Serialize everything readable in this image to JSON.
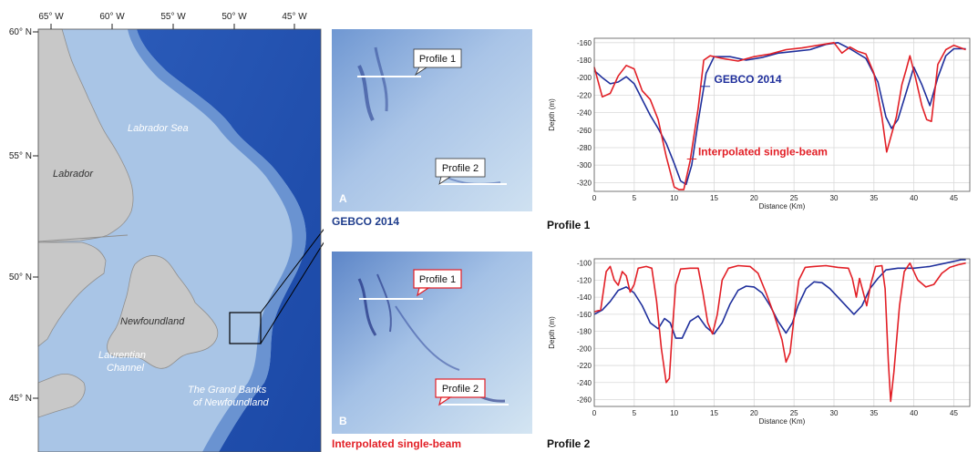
{
  "colors": {
    "gebco": "#1f2f9c",
    "single_beam": "#e21f26",
    "land": "#c8c8c8",
    "ocean_deep": "#1d4fb0",
    "ocean_shallow": "#bcd3ea"
  },
  "map": {
    "lon_ticks": [
      "65° W",
      "60° W",
      "55° W",
      "50° W",
      "45° W"
    ],
    "lat_ticks": [
      "60° N",
      "55° N",
      "50° N",
      "45° N"
    ],
    "labels": {
      "labrador_sea": "Labrador Sea",
      "labrador": "Labrador",
      "newfoundland": "Newfoundland",
      "laurentian_1": "Laurentian",
      "laurentian_2": "Channel",
      "grand_banks_1": "The Grand Banks",
      "grand_banks_2": "of Newfoundland"
    }
  },
  "panels": {
    "a": {
      "letter": "A",
      "caption": "GEBCO 2014",
      "profile1": "Profile 1",
      "profile2": "Profile 2"
    },
    "b": {
      "letter": "B",
      "caption": "Interpolated single-beam",
      "profile1": "Profile 1",
      "profile2": "Profile 2"
    }
  },
  "chart_data": [
    {
      "type": "line",
      "title": "Profile 1",
      "xlabel": "Distance (Km)",
      "ylabel": "Depth (m)",
      "xlim": [
        0,
        47
      ],
      "ylim": [
        -330,
        -155
      ],
      "xticks": [
        0,
        5,
        10,
        15,
        20,
        25,
        30,
        35,
        40,
        45
      ],
      "yticks": [
        -160,
        -180,
        -200,
        -220,
        -240,
        -260,
        -280,
        -300,
        -320
      ],
      "grid": true,
      "annotations": [
        "GEBCO 2014",
        "Interpolated single-beam"
      ],
      "series": [
        {
          "name": "GEBCO 2014",
          "color": "#1f2f9c",
          "points": [
            [
              0,
              -192
            ],
            [
              1,
              -200
            ],
            [
              2,
              -207
            ],
            [
              3,
              -205
            ],
            [
              4,
              -199
            ],
            [
              5,
              -207
            ],
            [
              6,
              -225
            ],
            [
              7,
              -243
            ],
            [
              8,
              -258
            ],
            [
              9,
              -275
            ],
            [
              10,
              -298
            ],
            [
              10.8,
              -318
            ],
            [
              11.5,
              -322
            ],
            [
              12.2,
              -300
            ],
            [
              13,
              -250
            ],
            [
              14,
              -195
            ],
            [
              15,
              -176
            ],
            [
              17,
              -176
            ],
            [
              19,
              -180
            ],
            [
              21,
              -177
            ],
            [
              23,
              -172
            ],
            [
              25,
              -170
            ],
            [
              27,
              -168
            ],
            [
              29,
              -162
            ],
            [
              30.5,
              -160
            ],
            [
              32,
              -167
            ],
            [
              34,
              -178
            ],
            [
              35.5,
              -205
            ],
            [
              36.5,
              -245
            ],
            [
              37.2,
              -258
            ],
            [
              38,
              -248
            ],
            [
              39,
              -218
            ],
            [
              40,
              -188
            ],
            [
              41,
              -208
            ],
            [
              42,
              -232
            ],
            [
              43,
              -200
            ],
            [
              44,
              -175
            ],
            [
              45,
              -167
            ],
            [
              46.5,
              -167
            ]
          ]
        },
        {
          "name": "Interpolated single-beam",
          "color": "#e21f26",
          "points": [
            [
              0,
              -188
            ],
            [
              1,
              -222
            ],
            [
              2,
              -218
            ],
            [
              3,
              -198
            ],
            [
              4,
              -186
            ],
            [
              5,
              -190
            ],
            [
              6,
              -215
            ],
            [
              7,
              -225
            ],
            [
              8,
              -248
            ],
            [
              9,
              -290
            ],
            [
              10,
              -325
            ],
            [
              10.6,
              -328
            ],
            [
              11.2,
              -328
            ],
            [
              12,
              -295
            ],
            [
              13,
              -235
            ],
            [
              13.7,
              -180
            ],
            [
              14.5,
              -175
            ],
            [
              16,
              -178
            ],
            [
              18,
              -181
            ],
            [
              20,
              -176
            ],
            [
              22,
              -173
            ],
            [
              24,
              -168
            ],
            [
              26,
              -166
            ],
            [
              28,
              -163
            ],
            [
              30,
              -160
            ],
            [
              31,
              -172
            ],
            [
              32,
              -165
            ],
            [
              33,
              -170
            ],
            [
              34,
              -173
            ],
            [
              35,
              -195
            ],
            [
              36,
              -245
            ],
            [
              36.6,
              -285
            ],
            [
              37.2,
              -265
            ],
            [
              37.8,
              -245
            ],
            [
              38.5,
              -208
            ],
            [
              39,
              -192
            ],
            [
              39.5,
              -175
            ],
            [
              40.2,
              -200
            ],
            [
              41,
              -232
            ],
            [
              41.6,
              -248
            ],
            [
              42.2,
              -250
            ],
            [
              43,
              -185
            ],
            [
              44,
              -168
            ],
            [
              45,
              -163
            ],
            [
              46.5,
              -168
            ]
          ]
        }
      ]
    },
    {
      "type": "line",
      "title": "Profile 2",
      "xlabel": "Distance (Km)",
      "ylabel": "Depth (m)",
      "xlim": [
        0,
        47
      ],
      "ylim": [
        -268,
        -95
      ],
      "xticks": [
        0,
        5,
        10,
        15,
        20,
        25,
        30,
        35,
        40,
        45
      ],
      "yticks": [
        -100,
        -120,
        -140,
        -160,
        -180,
        -200,
        -220,
        -240,
        -260
      ],
      "grid": true,
      "series": [
        {
          "name": "GEBCO 2014",
          "color": "#1f2f9c",
          "points": [
            [
              0,
              -160
            ],
            [
              1,
              -155
            ],
            [
              2,
              -145
            ],
            [
              3,
              -132
            ],
            [
              4,
              -128
            ],
            [
              5,
              -135
            ],
            [
              6,
              -150
            ],
            [
              7,
              -170
            ],
            [
              8,
              -177
            ],
            [
              8.8,
              -165
            ],
            [
              9.5,
              -170
            ],
            [
              10.2,
              -188
            ],
            [
              11,
              -188
            ],
            [
              12,
              -168
            ],
            [
              13,
              -162
            ],
            [
              14,
              -175
            ],
            [
              15,
              -183
            ],
            [
              16,
              -170
            ],
            [
              17,
              -148
            ],
            [
              18,
              -132
            ],
            [
              19,
              -127
            ],
            [
              20,
              -128
            ],
            [
              21,
              -135
            ],
            [
              22,
              -150
            ],
            [
              23,
              -168
            ],
            [
              24,
              -182
            ],
            [
              24.8,
              -170
            ],
            [
              25.5,
              -150
            ],
            [
              26.5,
              -130
            ],
            [
              27.5,
              -122
            ],
            [
              28.5,
              -123
            ],
            [
              29.5,
              -130
            ],
            [
              31,
              -145
            ],
            [
              32.5,
              -160
            ],
            [
              33.5,
              -150
            ],
            [
              34.5,
              -130
            ],
            [
              35.5,
              -118
            ],
            [
              36.5,
              -108
            ],
            [
              38,
              -106
            ],
            [
              40,
              -106
            ],
            [
              42,
              -104
            ],
            [
              44,
              -100
            ],
            [
              46,
              -96
            ],
            [
              46.5,
              -96
            ]
          ]
        },
        {
          "name": "Interpolated single-beam",
          "color": "#e21f26",
          "points": [
            [
              0,
              -157
            ],
            [
              0.8,
              -155
            ],
            [
              1.5,
              -110
            ],
            [
              2,
              -104
            ],
            [
              2.5,
              -120
            ],
            [
              3,
              -126
            ],
            [
              3.5,
              -110
            ],
            [
              4,
              -115
            ],
            [
              4.5,
              -134
            ],
            [
              5,
              -125
            ],
            [
              5.5,
              -106
            ],
            [
              6.5,
              -104
            ],
            [
              7.2,
              -106
            ],
            [
              7.8,
              -145
            ],
            [
              8.4,
              -200
            ],
            [
              9,
              -240
            ],
            [
              9.4,
              -235
            ],
            [
              9.8,
              -175
            ],
            [
              10.2,
              -125
            ],
            [
              10.8,
              -107
            ],
            [
              12,
              -106
            ],
            [
              13,
              -106
            ],
            [
              13.6,
              -135
            ],
            [
              14.2,
              -170
            ],
            [
              14.8,
              -183
            ],
            [
              15.4,
              -160
            ],
            [
              16,
              -120
            ],
            [
              16.8,
              -106
            ],
            [
              18,
              -103
            ],
            [
              19.5,
              -104
            ],
            [
              20.5,
              -112
            ],
            [
              21.5,
              -135
            ],
            [
              22.5,
              -160
            ],
            [
              23.5,
              -190
            ],
            [
              24,
              -216
            ],
            [
              24.5,
              -205
            ],
            [
              25,
              -165
            ],
            [
              25.6,
              -120
            ],
            [
              26.4,
              -105
            ],
            [
              27.5,
              -104
            ],
            [
              29,
              -103
            ],
            [
              30.5,
              -105
            ],
            [
              31.8,
              -106
            ],
            [
              32.3,
              -118
            ],
            [
              32.8,
              -140
            ],
            [
              33.2,
              -118
            ],
            [
              33.6,
              -132
            ],
            [
              34.1,
              -150
            ],
            [
              34.6,
              -125
            ],
            [
              35.2,
              -104
            ],
            [
              36,
              -103
            ],
            [
              36.4,
              -130
            ],
            [
              36.8,
              -215
            ],
            [
              37.1,
              -262
            ],
            [
              37.5,
              -228
            ],
            [
              38.2,
              -150
            ],
            [
              38.8,
              -110
            ],
            [
              39.5,
              -100
            ],
            [
              40.5,
              -120
            ],
            [
              41.5,
              -128
            ],
            [
              42.5,
              -125
            ],
            [
              43.5,
              -112
            ],
            [
              44.5,
              -105
            ],
            [
              45.5,
              -102
            ],
            [
              46.5,
              -100
            ]
          ]
        }
      ]
    }
  ]
}
